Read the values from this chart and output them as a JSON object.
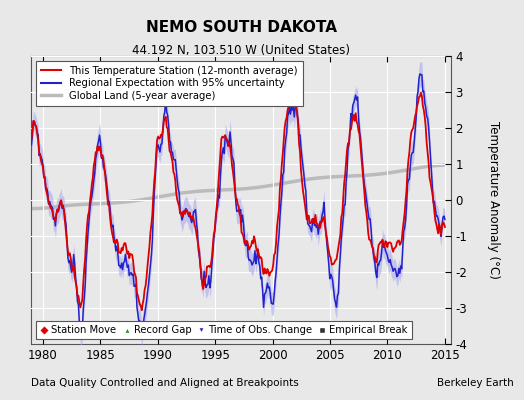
{
  "title": "NEMO SOUTH DAKOTA",
  "subtitle": "44.192 N, 103.510 W (United States)",
  "ylabel": "Temperature Anomaly (°C)",
  "xlabel_note": "Data Quality Controlled and Aligned at Breakpoints",
  "source_note": "Berkeley Earth",
  "ylim": [
    -4,
    4
  ],
  "xlim": [
    1979.0,
    2015.5
  ],
  "yticks": [
    -4,
    -3,
    -2,
    -1,
    0,
    1,
    2,
    3,
    4
  ],
  "xticks": [
    1980,
    1985,
    1990,
    1995,
    2000,
    2005,
    2010,
    2015
  ],
  "bg_color": "#e8e8e8",
  "grid_color": "#ffffff",
  "station_color": "#dd0000",
  "regional_color": "#2222cc",
  "regional_band_color": "#aaaaee",
  "global_color": "#bbbbbb",
  "legend_items": [
    {
      "label": "This Temperature Station (12-month average)",
      "color": "#dd0000"
    },
    {
      "label": "Regional Expectation with 95% uncertainty",
      "color": "#2222cc"
    },
    {
      "label": "Global Land (5-year average)",
      "color": "#bbbbbb"
    }
  ],
  "bottom_legend": [
    {
      "label": "Station Move",
      "marker": "D",
      "color": "#dd0000"
    },
    {
      "label": "Record Gap",
      "marker": "^",
      "color": "#228822"
    },
    {
      "label": "Time of Obs. Change",
      "marker": "v",
      "color": "#2222cc"
    },
    {
      "label": "Empirical Break",
      "marker": "s",
      "color": "#333333"
    }
  ]
}
